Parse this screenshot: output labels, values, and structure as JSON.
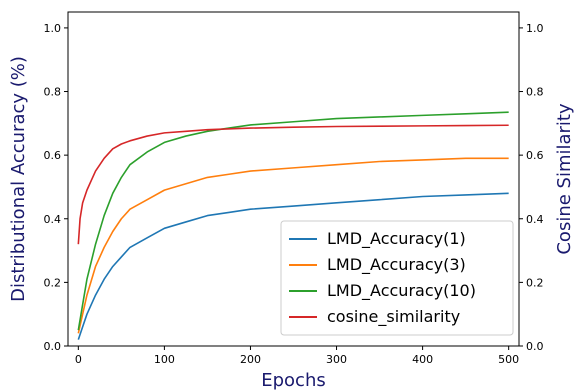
{
  "chart_data": {
    "type": "line",
    "xlabel": "Epochs",
    "ylabel_left": "Distributional Accuracy (%)",
    "ylabel_right": "Cosine Similarity",
    "xlim": [
      -12,
      512
    ],
    "ylim_left": [
      0.0,
      1.05
    ],
    "ylim_right": [
      0.0,
      1.05
    ],
    "xticks": [
      0,
      100,
      200,
      300,
      400,
      500
    ],
    "yticks_left": [
      0.0,
      0.2,
      0.4,
      0.6,
      0.8,
      1.0
    ],
    "yticks_right": [
      0.0,
      0.2,
      0.4,
      0.6,
      0.8,
      1.0
    ],
    "xtick_labels": [
      "0",
      "100",
      "200",
      "300",
      "400",
      "500"
    ],
    "ytick_labels_left": [
      "0.0",
      "0.2",
      "0.4",
      "0.6",
      "0.8",
      "1.0"
    ],
    "ytick_labels_right": [
      "0.0",
      "0.2",
      "0.4",
      "0.6",
      "0.8",
      "1.0"
    ],
    "grid": false,
    "legend_position": "lower-right",
    "series": [
      {
        "name": "LMD_Accuracy(1)",
        "color": "#1f77b4",
        "axis": "left",
        "x": [
          0,
          5,
          10,
          20,
          30,
          40,
          50,
          60,
          80,
          100,
          125,
          150,
          175,
          200,
          250,
          300,
          350,
          400,
          450,
          500
        ],
        "values": [
          0.02,
          0.06,
          0.1,
          0.16,
          0.21,
          0.25,
          0.28,
          0.31,
          0.34,
          0.37,
          0.39,
          0.41,
          0.42,
          0.43,
          0.44,
          0.45,
          0.46,
          0.47,
          0.475,
          0.48
        ]
      },
      {
        "name": "LMD_Accuracy(3)",
        "color": "#ff7f0e",
        "axis": "left",
        "x": [
          0,
          5,
          10,
          20,
          30,
          40,
          50,
          60,
          80,
          100,
          125,
          150,
          175,
          200,
          250,
          300,
          350,
          400,
          450,
          500
        ],
        "values": [
          0.04,
          0.1,
          0.16,
          0.25,
          0.31,
          0.36,
          0.4,
          0.43,
          0.46,
          0.49,
          0.51,
          0.53,
          0.54,
          0.55,
          0.56,
          0.57,
          0.58,
          0.585,
          0.59,
          0.59
        ]
      },
      {
        "name": "LMD_Accuracy(10)",
        "color": "#2ca02c",
        "axis": "left",
        "x": [
          0,
          5,
          10,
          20,
          30,
          40,
          50,
          60,
          80,
          100,
          125,
          150,
          175,
          200,
          250,
          300,
          350,
          400,
          450,
          500
        ],
        "values": [
          0.05,
          0.13,
          0.21,
          0.32,
          0.41,
          0.48,
          0.53,
          0.57,
          0.61,
          0.64,
          0.66,
          0.675,
          0.685,
          0.695,
          0.705,
          0.715,
          0.72,
          0.725,
          0.73,
          0.735
        ]
      },
      {
        "name": "cosine_similarity",
        "color": "#d62728",
        "axis": "right",
        "x": [
          0,
          2,
          5,
          10,
          15,
          20,
          30,
          40,
          50,
          60,
          80,
          100,
          125,
          150,
          200,
          250,
          300,
          350,
          400,
          450,
          500
        ],
        "values": [
          0.32,
          0.4,
          0.45,
          0.49,
          0.52,
          0.55,
          0.59,
          0.62,
          0.635,
          0.645,
          0.66,
          0.67,
          0.675,
          0.68,
          0.685,
          0.688,
          0.69,
          0.691,
          0.692,
          0.693,
          0.694
        ]
      }
    ]
  }
}
